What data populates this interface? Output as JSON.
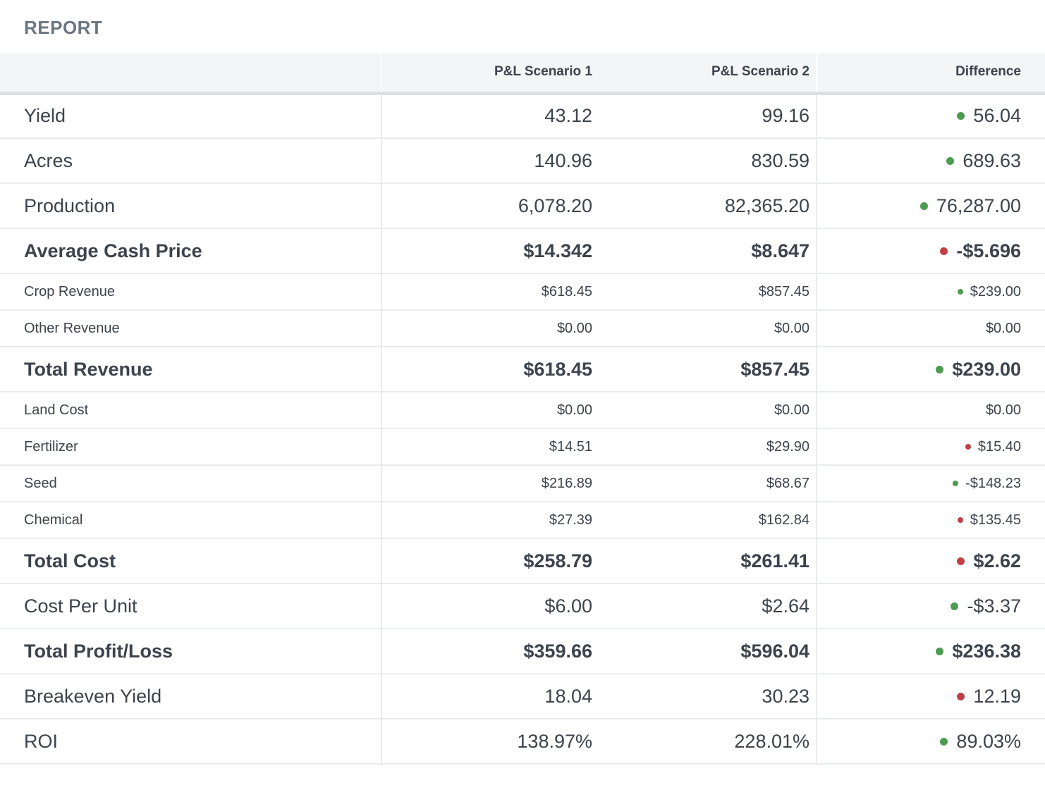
{
  "page": {
    "title": "REPORT"
  },
  "table": {
    "columns": [
      {
        "label": ""
      },
      {
        "label": "P&L Scenario 1"
      },
      {
        "label": "P&L Scenario 2"
      },
      {
        "label": "Difference"
      }
    ],
    "colors": {
      "positive_dot": "#4d9b50",
      "negative_dot": "#c23f48",
      "text": "#3c434c",
      "title": "#6b7682",
      "header_bg": "#f4f5f7"
    },
    "rows": [
      {
        "label": "Yield",
        "s1": "43.12",
        "s2": "99.16",
        "diff": "56.04",
        "dot": "green",
        "style": "large"
      },
      {
        "label": "Acres",
        "s1": "140.96",
        "s2": "830.59",
        "diff": "689.63",
        "dot": "green",
        "style": "large"
      },
      {
        "label": "Production",
        "s1": "6,078.20",
        "s2": "82,365.20",
        "diff": "76,287.00",
        "dot": "green",
        "style": "large"
      },
      {
        "label": "Average Cash Price",
        "s1": "$14.342",
        "s2": "$8.647",
        "diff": "-$5.696",
        "dot": "red",
        "style": "total"
      },
      {
        "label": "Crop Revenue",
        "s1": "$618.45",
        "s2": "$857.45",
        "diff": "$239.00",
        "dot": "green",
        "style": "small"
      },
      {
        "label": "Other Revenue",
        "s1": "$0.00",
        "s2": "$0.00",
        "diff": "$0.00",
        "dot": "none",
        "style": "small"
      },
      {
        "label": "Total Revenue",
        "s1": "$618.45",
        "s2": "$857.45",
        "diff": "$239.00",
        "dot": "green",
        "style": "total"
      },
      {
        "label": "Land Cost",
        "s1": "$0.00",
        "s2": "$0.00",
        "diff": "$0.00",
        "dot": "none",
        "style": "small"
      },
      {
        "label": "Fertilizer",
        "s1": "$14.51",
        "s2": "$29.90",
        "diff": "$15.40",
        "dot": "red",
        "style": "small"
      },
      {
        "label": "Seed",
        "s1": "$216.89",
        "s2": "$68.67",
        "diff": "-$148.23",
        "dot": "green",
        "style": "small"
      },
      {
        "label": "Chemical",
        "s1": "$27.39",
        "s2": "$162.84",
        "diff": "$135.45",
        "dot": "red",
        "style": "small"
      },
      {
        "label": "Total Cost",
        "s1": "$258.79",
        "s2": "$261.41",
        "diff": "$2.62",
        "dot": "red",
        "style": "total"
      },
      {
        "label": "Cost Per Unit",
        "s1": "$6.00",
        "s2": "$2.64",
        "diff": "-$3.37",
        "dot": "green",
        "style": "large"
      },
      {
        "label": "Total Profit/Loss",
        "s1": "$359.66",
        "s2": "$596.04",
        "diff": "$236.38",
        "dot": "green",
        "style": "total"
      },
      {
        "label": "Breakeven Yield",
        "s1": "18.04",
        "s2": "30.23",
        "diff": "12.19",
        "dot": "red",
        "style": "large"
      },
      {
        "label": "ROI",
        "s1": "138.97%",
        "s2": "228.01%",
        "diff": "89.03%",
        "dot": "green",
        "style": "large"
      }
    ]
  }
}
